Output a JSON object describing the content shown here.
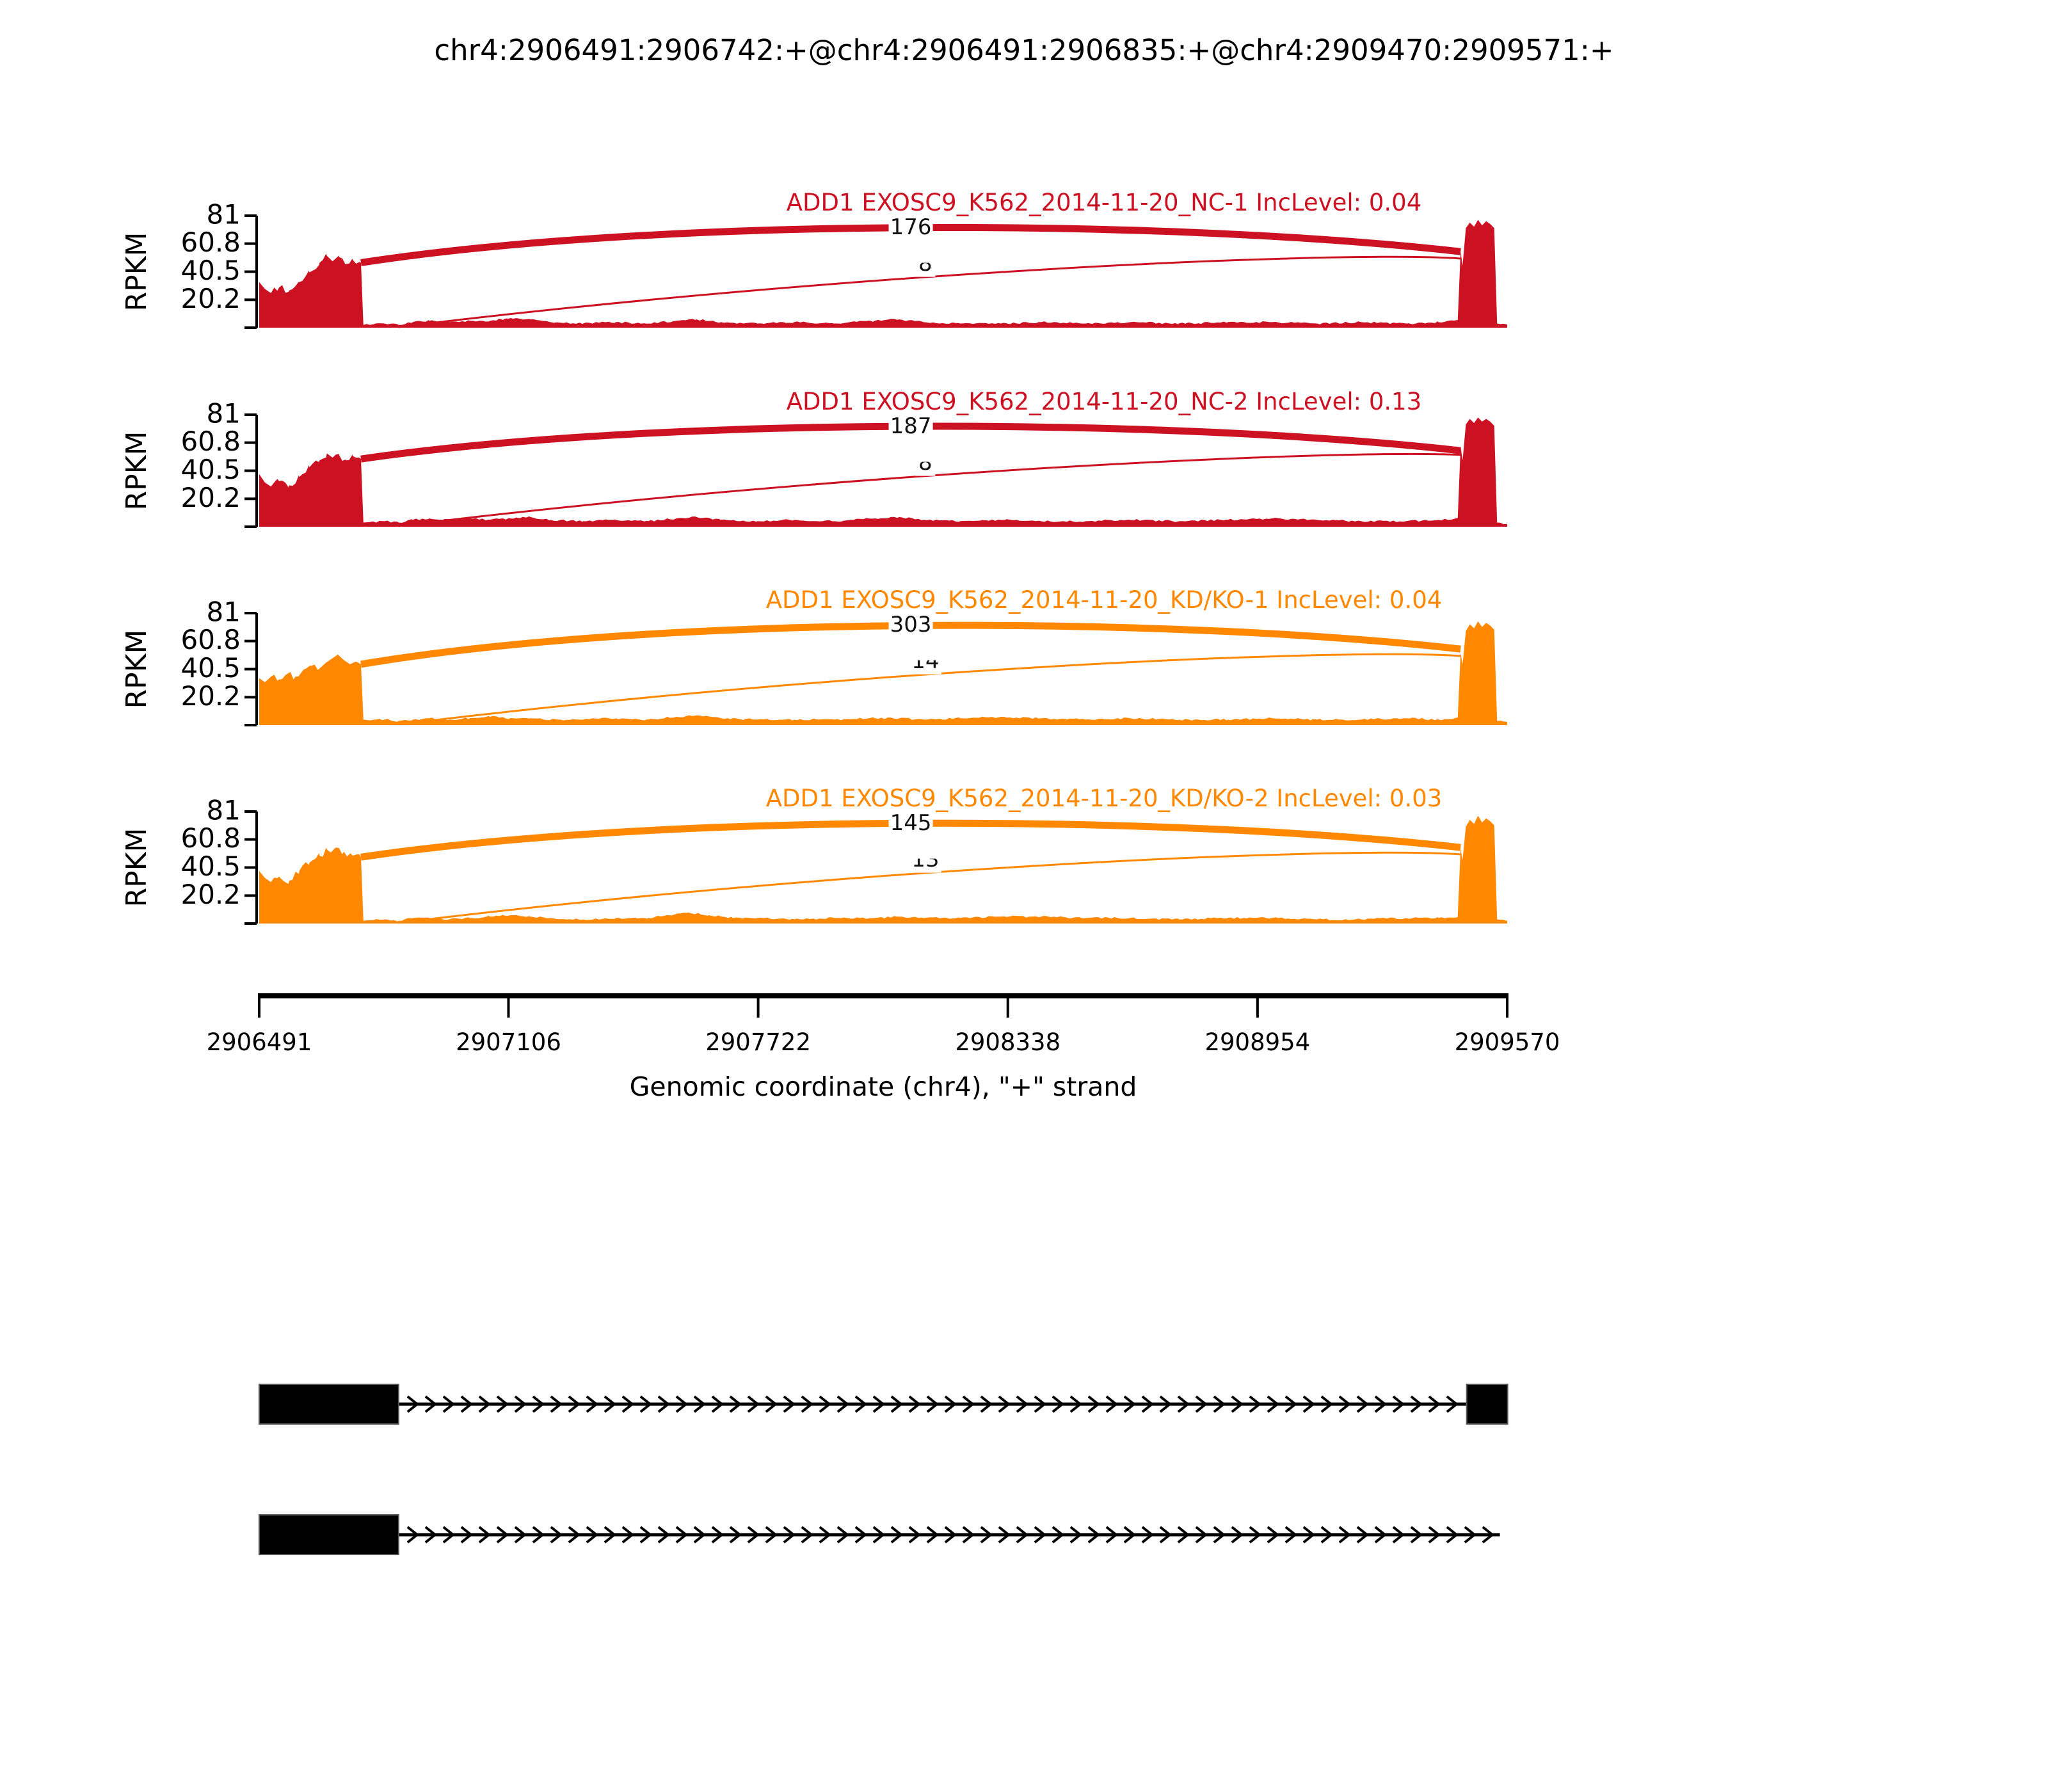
{
  "figure": {
    "title": "chr4:2906491:2906742:+@chr4:2906491:2906835:+@chr4:2909470:2909571:+"
  },
  "chart_data": {
    "type": "area",
    "subtype": "sashimi-plot",
    "title": "chr4:2906491:2906742:+@chr4:2906491:2906835:+@chr4:2909470:2909571:+",
    "xlabel": "Genomic coordinate (chr4), \"+\" strand",
    "ylabel": "RPKM",
    "strand": "+",
    "grid": false,
    "xlim": [
      2906491,
      2909570
    ],
    "ylim": [
      0,
      81
    ],
    "x_ticks": [
      "2906491",
      "2907106",
      "2907722",
      "2908338",
      "2908954",
      "2909570"
    ],
    "y_ticks": [
      "81",
      "60.8",
      "40.5",
      "20.2"
    ],
    "y_tick_values": [
      81,
      60.8,
      40.5,
      20.2
    ],
    "colors": {
      "group1": "#CC1122",
      "group2": "#FF8800",
      "gene_model": "#000000"
    },
    "tracks": [
      {
        "title": "ADD1 EXOSC9_K562_2014-11-20_NC-1 IncLevel: 0.04",
        "sample": "NC-1",
        "inc_level": 0.04,
        "color": "#CC1122",
        "junctions": [
          {
            "from": 2906742,
            "to": 2909455,
            "count": 176,
            "style": "thick",
            "h1": 47,
            "h2": 55
          },
          {
            "from": 2906835,
            "to": 2909455,
            "count": 8,
            "style": "thin",
            "h1": 0.5,
            "h2": 50,
            "clipped": true
          }
        ],
        "coverage": [
          [
            2906491,
            33
          ],
          [
            2906505,
            28
          ],
          [
            2906520,
            25
          ],
          [
            2906540,
            29
          ],
          [
            2906565,
            27
          ],
          [
            2906590,
            33
          ],
          [
            2906615,
            40
          ],
          [
            2906640,
            47
          ],
          [
            2906658,
            52
          ],
          [
            2906672,
            48
          ],
          [
            2906688,
            51
          ],
          [
            2906705,
            46
          ],
          [
            2906722,
            49
          ],
          [
            2906742,
            47
          ],
          [
            2906748,
            2
          ],
          [
            2906800,
            3
          ],
          [
            2906835,
            2
          ],
          [
            2906870,
            4
          ],
          [
            2906910,
            5
          ],
          [
            2906960,
            4
          ],
          [
            2907010,
            5
          ],
          [
            2907060,
            5
          ],
          [
            2907110,
            7
          ],
          [
            2907160,
            6
          ],
          [
            2907210,
            4
          ],
          [
            2907290,
            3
          ],
          [
            2907370,
            4
          ],
          [
            2907450,
            3
          ],
          [
            2907520,
            5
          ],
          [
            2907570,
            6
          ],
          [
            2907630,
            4
          ],
          [
            2907720,
            3
          ],
          [
            2907810,
            4
          ],
          [
            2907910,
            3
          ],
          [
            2908010,
            5
          ],
          [
            2908070,
            6
          ],
          [
            2908130,
            4
          ],
          [
            2908220,
            3
          ],
          [
            2908320,
            3
          ],
          [
            2908420,
            4
          ],
          [
            2908530,
            3
          ],
          [
            2908640,
            4
          ],
          [
            2908760,
            3
          ],
          [
            2908880,
            4
          ],
          [
            2908990,
            4
          ],
          [
            2909100,
            3
          ],
          [
            2909210,
            4
          ],
          [
            2909320,
            3
          ],
          [
            2909400,
            4
          ],
          [
            2909448,
            5
          ],
          [
            2909455,
            55
          ],
          [
            2909460,
            45
          ],
          [
            2909468,
            72
          ],
          [
            2909478,
            76
          ],
          [
            2909488,
            73
          ],
          [
            2909498,
            78
          ],
          [
            2909508,
            74
          ],
          [
            2909518,
            77
          ],
          [
            2909528,
            75
          ],
          [
            2909538,
            72
          ],
          [
            2909545,
            3
          ],
          [
            2909570,
            2
          ]
        ]
      },
      {
        "title": "ADD1 EXOSC9_K562_2014-11-20_NC-2 IncLevel: 0.13",
        "sample": "NC-2",
        "inc_level": 0.13,
        "color": "#CC1122",
        "junctions": [
          {
            "from": 2906742,
            "to": 2909455,
            "count": 187,
            "style": "thick",
            "h1": 49,
            "h2": 55
          },
          {
            "from": 2906835,
            "to": 2909455,
            "count": 8,
            "style": "thin",
            "h1": 0.5,
            "h2": 52,
            "clipped": true
          }
        ],
        "coverage": [
          [
            2906491,
            38
          ],
          [
            2906505,
            32
          ],
          [
            2906520,
            29
          ],
          [
            2906540,
            33
          ],
          [
            2906565,
            30
          ],
          [
            2906590,
            36
          ],
          [
            2906615,
            43
          ],
          [
            2906640,
            48
          ],
          [
            2906658,
            53
          ],
          [
            2906672,
            50
          ],
          [
            2906688,
            52
          ],
          [
            2906705,
            48
          ],
          [
            2906722,
            51
          ],
          [
            2906742,
            49
          ],
          [
            2906748,
            3
          ],
          [
            2906800,
            4
          ],
          [
            2906835,
            3
          ],
          [
            2906870,
            5
          ],
          [
            2906910,
            6
          ],
          [
            2906960,
            5
          ],
          [
            2907010,
            6
          ],
          [
            2907060,
            5
          ],
          [
            2907110,
            6
          ],
          [
            2907160,
            7
          ],
          [
            2907210,
            5
          ],
          [
            2907290,
            4
          ],
          [
            2907370,
            5
          ],
          [
            2907450,
            4
          ],
          [
            2907520,
            6
          ],
          [
            2907570,
            7
          ],
          [
            2907630,
            5
          ],
          [
            2907720,
            4
          ],
          [
            2907810,
            5
          ],
          [
            2907910,
            4
          ],
          [
            2908010,
            6
          ],
          [
            2908070,
            7
          ],
          [
            2908130,
            5
          ],
          [
            2908220,
            4
          ],
          [
            2908320,
            5
          ],
          [
            2908420,
            4
          ],
          [
            2908530,
            4
          ],
          [
            2908640,
            5
          ],
          [
            2908760,
            4
          ],
          [
            2908880,
            5
          ],
          [
            2908990,
            6
          ],
          [
            2909100,
            5
          ],
          [
            2909210,
            4
          ],
          [
            2909320,
            4
          ],
          [
            2909400,
            5
          ],
          [
            2909448,
            6
          ],
          [
            2909455,
            58
          ],
          [
            2909460,
            48
          ],
          [
            2909468,
            74
          ],
          [
            2909478,
            78
          ],
          [
            2909488,
            75
          ],
          [
            2909498,
            79
          ],
          [
            2909508,
            76
          ],
          [
            2909518,
            78
          ],
          [
            2909528,
            76
          ],
          [
            2909538,
            73
          ],
          [
            2909545,
            3
          ],
          [
            2909570,
            2
          ]
        ]
      },
      {
        "title": "ADD1 EXOSC9_K562_2014-11-20_KD/KO-1 IncLevel: 0.04",
        "sample": "KD/KO-1",
        "inc_level": 0.04,
        "color": "#FF8800",
        "junctions": [
          {
            "from": 2906742,
            "to": 2909455,
            "count": 303,
            "style": "thick",
            "h1": 44,
            "h2": 55
          },
          {
            "from": 2906835,
            "to": 2909455,
            "count": 14,
            "style": "thin",
            "h1": 0.5,
            "h2": 50,
            "clipped": true
          }
        ],
        "coverage": [
          [
            2906491,
            34
          ],
          [
            2906505,
            31
          ],
          [
            2906520,
            35
          ],
          [
            2906540,
            33
          ],
          [
            2906560,
            37
          ],
          [
            2906580,
            35
          ],
          [
            2906600,
            40
          ],
          [
            2906620,
            43
          ],
          [
            2906640,
            41
          ],
          [
            2906655,
            45
          ],
          [
            2906670,
            48
          ],
          [
            2906685,
            51
          ],
          [
            2906700,
            47
          ],
          [
            2906715,
            44
          ],
          [
            2906730,
            46
          ],
          [
            2906742,
            44
          ],
          [
            2906748,
            4
          ],
          [
            2906800,
            4
          ],
          [
            2906835,
            3
          ],
          [
            2906870,
            4
          ],
          [
            2906910,
            5
          ],
          [
            2906960,
            4
          ],
          [
            2907010,
            5
          ],
          [
            2907060,
            6
          ],
          [
            2907110,
            5
          ],
          [
            2907160,
            5
          ],
          [
            2907210,
            4
          ],
          [
            2907290,
            4
          ],
          [
            2907370,
            5
          ],
          [
            2907450,
            4
          ],
          [
            2907520,
            6
          ],
          [
            2907570,
            7
          ],
          [
            2907630,
            5
          ],
          [
            2907720,
            4
          ],
          [
            2907810,
            4
          ],
          [
            2907910,
            4
          ],
          [
            2908010,
            5
          ],
          [
            2908070,
            5
          ],
          [
            2908130,
            4
          ],
          [
            2908220,
            5
          ],
          [
            2908320,
            6
          ],
          [
            2908420,
            5
          ],
          [
            2908530,
            4
          ],
          [
            2908640,
            5
          ],
          [
            2908760,
            4
          ],
          [
            2908880,
            4
          ],
          [
            2908990,
            5
          ],
          [
            2909100,
            4
          ],
          [
            2909210,
            4
          ],
          [
            2909320,
            5
          ],
          [
            2909400,
            4
          ],
          [
            2909448,
            5
          ],
          [
            2909455,
            52
          ],
          [
            2909460,
            44
          ],
          [
            2909468,
            68
          ],
          [
            2909478,
            73
          ],
          [
            2909488,
            70
          ],
          [
            2909498,
            75
          ],
          [
            2909508,
            71
          ],
          [
            2909518,
            74
          ],
          [
            2909528,
            72
          ],
          [
            2909538,
            69
          ],
          [
            2909545,
            3
          ],
          [
            2909570,
            2
          ]
        ]
      },
      {
        "title": "ADD1 EXOSC9_K562_2014-11-20_KD/KO-2 IncLevel: 0.03",
        "sample": "KD/KO-2",
        "inc_level": 0.03,
        "color": "#FF8800",
        "junctions": [
          {
            "from": 2906742,
            "to": 2909455,
            "count": 145,
            "style": "thick",
            "h1": 48,
            "h2": 55
          },
          {
            "from": 2906835,
            "to": 2909455,
            "count": 13,
            "style": "thin",
            "h1": 0.5,
            "h2": 50,
            "clipped": true
          }
        ],
        "coverage": [
          [
            2906491,
            38
          ],
          [
            2906505,
            33
          ],
          [
            2906520,
            30
          ],
          [
            2906540,
            34
          ],
          [
            2906565,
            31
          ],
          [
            2906590,
            38
          ],
          [
            2906615,
            44
          ],
          [
            2906640,
            49
          ],
          [
            2906660,
            53
          ],
          [
            2906680,
            55
          ],
          [
            2906700,
            52
          ],
          [
            2906722,
            49
          ],
          [
            2906742,
            48
          ],
          [
            2906748,
            2
          ],
          [
            2906800,
            3
          ],
          [
            2906835,
            2
          ],
          [
            2906870,
            4
          ],
          [
            2906910,
            4
          ],
          [
            2906960,
            3
          ],
          [
            2907010,
            4
          ],
          [
            2907060,
            5
          ],
          [
            2907110,
            6
          ],
          [
            2907160,
            5
          ],
          [
            2907210,
            4
          ],
          [
            2907290,
            3
          ],
          [
            2907370,
            4
          ],
          [
            2907450,
            4
          ],
          [
            2907500,
            6
          ],
          [
            2907550,
            8
          ],
          [
            2907600,
            6
          ],
          [
            2907660,
            4
          ],
          [
            2907720,
            4
          ],
          [
            2907810,
            3
          ],
          [
            2907910,
            4
          ],
          [
            2908010,
            4
          ],
          [
            2908070,
            5
          ],
          [
            2908130,
            4
          ],
          [
            2908220,
            4
          ],
          [
            2908320,
            5
          ],
          [
            2908420,
            5
          ],
          [
            2908530,
            4
          ],
          [
            2908640,
            4
          ],
          [
            2908760,
            3
          ],
          [
            2908880,
            4
          ],
          [
            2908990,
            4
          ],
          [
            2909100,
            3
          ],
          [
            2909210,
            3
          ],
          [
            2909320,
            4
          ],
          [
            2909400,
            4
          ],
          [
            2909448,
            5
          ],
          [
            2909455,
            54
          ],
          [
            2909460,
            46
          ],
          [
            2909468,
            70
          ],
          [
            2909478,
            75
          ],
          [
            2909488,
            72
          ],
          [
            2909498,
            78
          ],
          [
            2909508,
            73
          ],
          [
            2909518,
            76
          ],
          [
            2909528,
            74
          ],
          [
            2909538,
            71
          ],
          [
            2909545,
            3
          ],
          [
            2909570,
            2
          ]
        ]
      }
    ],
    "isoforms": [
      {
        "exons": [
          [
            2906491,
            2906835
          ],
          [
            2909470,
            2909571
          ]
        ],
        "intron": [
          2906835,
          2909470
        ]
      },
      {
        "exons": [
          [
            2906491,
            2906835
          ]
        ],
        "intron": [
          2906835,
          2909552
        ]
      }
    ]
  }
}
